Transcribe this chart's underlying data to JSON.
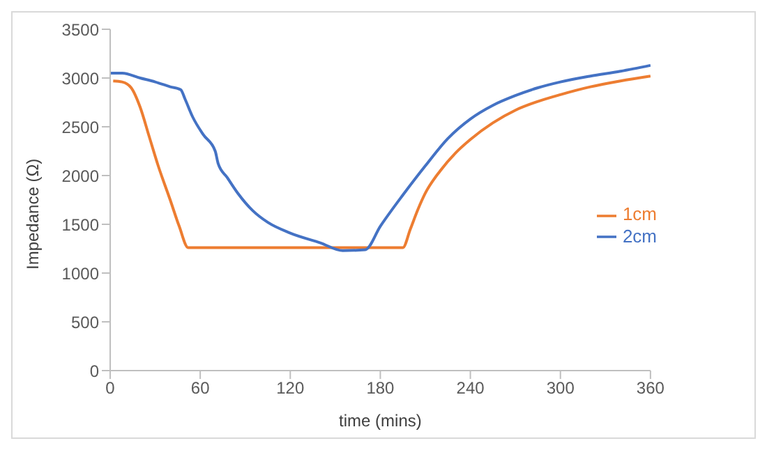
{
  "chart_data": {
    "type": "line",
    "xlabel": "time (mins)",
    "ylabel": "Impedance (Ω)",
    "xlim": [
      0,
      360
    ],
    "xticks": [
      0,
      60,
      120,
      180,
      240,
      300,
      360
    ],
    "ylim": [
      0,
      3500
    ],
    "yticks": [
      0,
      500,
      1000,
      1500,
      2000,
      2500,
      3000,
      3500
    ],
    "grid": false,
    "legend": "right",
    "marker": "none",
    "line_style": "solid",
    "series": [
      {
        "name": "1cm",
        "color": "#ed7d31",
        "x": [
          2,
          8,
          14,
          20,
          26,
          32,
          40,
          46,
          52,
          100,
          150,
          195,
          200,
          205,
          210,
          220,
          230,
          240,
          255,
          270,
          285,
          300,
          320,
          340,
          360
        ],
        "values": [
          2970,
          2960,
          2900,
          2700,
          2400,
          2100,
          1750,
          1480,
          1260,
          1260,
          1260,
          1260,
          1450,
          1650,
          1820,
          2050,
          2230,
          2370,
          2540,
          2670,
          2760,
          2830,
          2910,
          2970,
          3020
        ]
      },
      {
        "name": "2cm",
        "color": "#4472c4",
        "x": [
          0,
          8,
          20,
          30,
          40,
          47,
          50,
          55,
          62,
          70,
          72,
          78,
          85,
          95,
          105,
          120,
          140,
          155,
          170,
          180,
          195,
          210,
          225,
          240,
          255,
          270,
          285,
          300,
          320,
          340,
          360
        ],
        "values": [
          3050,
          3050,
          3000,
          2960,
          2910,
          2880,
          2780,
          2600,
          2420,
          2250,
          2120,
          1980,
          1820,
          1640,
          1520,
          1410,
          1310,
          1230,
          1240,
          1480,
          1800,
          2100,
          2380,
          2580,
          2720,
          2820,
          2900,
          2960,
          3020,
          3070,
          3130
        ]
      }
    ]
  }
}
